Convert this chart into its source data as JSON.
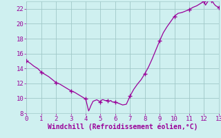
{
  "xlabel": "Windchill (Refroidissement éolien,°C)",
  "background_color": "#cff0f0",
  "line_color": "#990099",
  "marker_color": "#990099",
  "grid_color": "#a0c8c8",
  "xlim": [
    0,
    13
  ],
  "ylim": [
    8,
    23
  ],
  "xticks": [
    0,
    1,
    2,
    3,
    4,
    5,
    6,
    7,
    8,
    9,
    10,
    11,
    12,
    13
  ],
  "yticks": [
    8,
    10,
    12,
    14,
    16,
    18,
    20,
    22
  ],
  "x": [
    0.0,
    0.25,
    0.5,
    0.75,
    1.0,
    1.25,
    1.5,
    1.75,
    2.0,
    2.25,
    2.5,
    2.75,
    3.0,
    3.25,
    3.5,
    3.75,
    4.0,
    4.1,
    4.15,
    4.2,
    4.25,
    4.35,
    4.5,
    4.75,
    5.0,
    5.1,
    5.2,
    5.3,
    5.4,
    5.5,
    5.6,
    5.7,
    5.8,
    6.0,
    6.25,
    6.5,
    6.75,
    7.0,
    7.25,
    7.5,
    7.75,
    8.0,
    8.25,
    8.5,
    8.75,
    9.0,
    9.25,
    9.5,
    9.75,
    10.0,
    10.25,
    10.5,
    10.75,
    11.0,
    11.25,
    11.5,
    11.75,
    12.0,
    12.1,
    12.2,
    12.3,
    12.4,
    12.5,
    12.6,
    12.7,
    12.8,
    12.9,
    13.0
  ],
  "y": [
    15.0,
    14.7,
    14.3,
    14.0,
    13.5,
    13.2,
    12.9,
    12.5,
    12.1,
    11.9,
    11.6,
    11.3,
    11.0,
    10.8,
    10.5,
    10.2,
    9.9,
    9.1,
    8.7,
    8.3,
    8.5,
    9.0,
    9.6,
    9.8,
    9.5,
    9.8,
    9.8,
    9.7,
    9.7,
    9.7,
    9.6,
    9.7,
    9.5,
    9.5,
    9.3,
    9.1,
    9.2,
    10.3,
    11.2,
    11.9,
    12.5,
    13.3,
    14.2,
    15.3,
    16.5,
    17.7,
    18.8,
    19.6,
    20.3,
    21.0,
    21.4,
    21.5,
    21.7,
    21.9,
    22.2,
    22.4,
    22.7,
    23.0,
    22.5,
    22.8,
    23.1,
    23.2,
    23.1,
    22.9,
    22.6,
    22.4,
    22.3,
    22.2
  ],
  "marker_x": [
    0.0,
    1.0,
    2.0,
    3.0,
    4.0,
    5.0,
    5.5,
    6.0,
    7.0,
    8.0,
    9.0,
    10.0,
    11.0,
    12.0,
    12.5,
    13.0
  ],
  "marker_y": [
    15.0,
    13.5,
    12.1,
    11.0,
    9.9,
    9.5,
    9.7,
    9.5,
    10.3,
    13.3,
    17.7,
    21.0,
    21.9,
    23.0,
    23.1,
    22.2
  ],
  "fontsize_tick": 6.5,
  "fontsize_label": 7.0
}
